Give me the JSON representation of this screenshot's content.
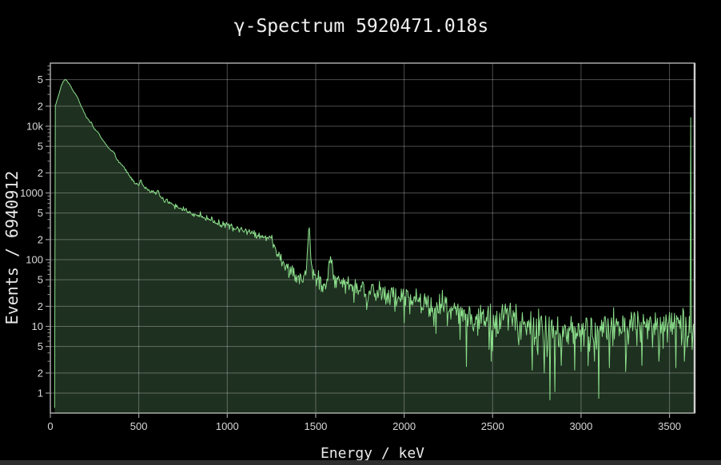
{
  "title": "γ-Spectrum 5920471.018s",
  "xlabel": "Energy / keV",
  "ylabel": "Events / 6940912",
  "colors": {
    "background": "#000000",
    "line": "#8cdf8c",
    "fill": "#1e301f",
    "grid": "rgba(255,255,255,0.30)",
    "tick_mark": "#9a9a9a",
    "border": "#c2c2c2",
    "border_right": "#cfcfcf",
    "title_text": "#f0f0f0",
    "tick_text": "#d9d9d9",
    "bottom_bar": "#2e2e2e"
  },
  "chart_data": {
    "type": "area",
    "title": "γ-Spectrum 5920471.018s",
    "xlabel": "Energy / keV",
    "ylabel": "Events / 6940912",
    "log_y": true,
    "grid": true,
    "legend": "none",
    "x_range_kev": [
      0,
      3642
    ],
    "y_range_counts": [
      0.55,
      88000
    ],
    "x_ticks": [
      0,
      500,
      1000,
      1500,
      2000,
      2500,
      3000,
      3500
    ],
    "y_ticks": [
      {
        "v": 1,
        "label": "1"
      },
      {
        "v": 2,
        "label": "2"
      },
      {
        "v": 5,
        "label": "5"
      },
      {
        "v": 10,
        "label": "10"
      },
      {
        "v": 20,
        "label": "2"
      },
      {
        "v": 50,
        "label": "5"
      },
      {
        "v": 100,
        "label": "100"
      },
      {
        "v": 200,
        "label": "2"
      },
      {
        "v": 500,
        "label": "5"
      },
      {
        "v": 1000,
        "label": "1000"
      },
      {
        "v": 2000,
        "label": "2"
      },
      {
        "v": 5000,
        "label": "5"
      },
      {
        "v": 10000,
        "label": "10k"
      },
      {
        "v": 20000,
        "label": "2"
      },
      {
        "v": 50000,
        "label": "5"
      }
    ],
    "y_minor_mults": [
      3,
      4,
      6,
      7,
      8,
      9
    ],
    "bin_width_kev": 4,
    "envelope_points_kev_counts": [
      [
        24,
        0.6
      ],
      [
        25,
        12000
      ],
      [
        27,
        20000
      ],
      [
        29,
        21800
      ],
      [
        33,
        22000
      ],
      [
        38,
        24500
      ],
      [
        48,
        30000
      ],
      [
        60,
        39000
      ],
      [
        72,
        46500
      ],
      [
        82,
        50200
      ],
      [
        90,
        49500
      ],
      [
        100,
        45500
      ],
      [
        113,
        41000
      ],
      [
        128,
        34000
      ],
      [
        142,
        30500
      ],
      [
        155,
        26500
      ],
      [
        172,
        20500
      ],
      [
        190,
        16300
      ],
      [
        205,
        13600
      ],
      [
        218,
        12200
      ],
      [
        228,
        11300
      ],
      [
        232,
        11600
      ],
      [
        240,
        9900
      ],
      [
        255,
        8800
      ],
      [
        270,
        8000
      ],
      [
        288,
        6700
      ],
      [
        305,
        5800
      ],
      [
        322,
        5000
      ],
      [
        340,
        4400
      ],
      [
        352,
        4150
      ],
      [
        360,
        4050
      ],
      [
        375,
        3250
      ],
      [
        390,
        2850
      ],
      [
        405,
        2580
      ],
      [
        420,
        2360
      ],
      [
        438,
        1960
      ],
      [
        455,
        1690
      ],
      [
        472,
        1490
      ],
      [
        488,
        1360
      ],
      [
        500,
        1300
      ],
      [
        507,
        1440
      ],
      [
        511,
        1560
      ],
      [
        516,
        1430
      ],
      [
        528,
        1240
      ],
      [
        545,
        1150
      ],
      [
        562,
        1060
      ],
      [
        578,
        1000
      ],
      [
        583,
        1090
      ],
      [
        590,
        985
      ],
      [
        600,
        955
      ],
      [
        609,
        1150
      ],
      [
        616,
        950
      ],
      [
        628,
        835
      ],
      [
        645,
        785
      ],
      [
        662,
        745
      ],
      [
        690,
        665
      ],
      [
        720,
        612
      ],
      [
        755,
        565
      ],
      [
        790,
        508
      ],
      [
        815,
        478
      ],
      [
        845,
        458
      ],
      [
        878,
        418
      ],
      [
        908,
        392
      ],
      [
        913,
        422
      ],
      [
        922,
        372
      ],
      [
        950,
        352
      ],
      [
        985,
        332
      ],
      [
        1015,
        316
      ],
      [
        1048,
        295
      ],
      [
        1080,
        274
      ],
      [
        1115,
        262
      ],
      [
        1122,
        268
      ],
      [
        1135,
        243
      ],
      [
        1165,
        235
      ],
      [
        1195,
        226
      ],
      [
        1225,
        217
      ],
      [
        1243,
        212
      ],
      [
        1258,
        196
      ],
      [
        1270,
        152
      ],
      [
        1283,
        122
      ],
      [
        1298,
        102
      ],
      [
        1315,
        86
      ],
      [
        1335,
        74
      ],
      [
        1358,
        65
      ],
      [
        1382,
        59
      ],
      [
        1405,
        56
      ],
      [
        1425,
        53
      ],
      [
        1438,
        56
      ],
      [
        1448,
        76
      ],
      [
        1455,
        160
      ],
      [
        1461,
        315
      ],
      [
        1467,
        205
      ],
      [
        1474,
        92
      ],
      [
        1483,
        64
      ],
      [
        1497,
        56
      ],
      [
        1512,
        49
      ],
      [
        1530,
        46
      ],
      [
        1548,
        45
      ],
      [
        1562,
        52
      ],
      [
        1574,
        78
      ],
      [
        1584,
        120
      ],
      [
        1591,
        86
      ],
      [
        1600,
        56
      ],
      [
        1612,
        47
      ],
      [
        1630,
        44
      ],
      [
        1655,
        42
      ],
      [
        1680,
        41
      ],
      [
        1710,
        40
      ],
      [
        1745,
        38
      ],
      [
        1780,
        36
      ],
      [
        1815,
        34
      ],
      [
        1850,
        32
      ],
      [
        1885,
        30
      ],
      [
        1920,
        29
      ],
      [
        1955,
        28
      ],
      [
        1985,
        27
      ],
      [
        2020,
        25
      ],
      [
        2055,
        24
      ],
      [
        2090,
        23
      ],
      [
        2125,
        22
      ],
      [
        2160,
        21
      ],
      [
        2195,
        20
      ],
      [
        2230,
        18.5
      ],
      [
        2262,
        17.5
      ],
      [
        2295,
        16.2
      ],
      [
        2330,
        15
      ],
      [
        2365,
        14
      ],
      [
        2400,
        13.2
      ],
      [
        2435,
        12.8
      ],
      [
        2470,
        12.2
      ],
      [
        2505,
        11.9
      ],
      [
        2540,
        12
      ],
      [
        2575,
        14.5
      ],
      [
        2598,
        18.5
      ],
      [
        2614,
        20
      ],
      [
        2628,
        14.5
      ],
      [
        2645,
        11
      ],
      [
        2680,
        10.3
      ],
      [
        2720,
        10
      ],
      [
        2760,
        9.8
      ],
      [
        2810,
        9.6
      ],
      [
        2860,
        9.5
      ],
      [
        2920,
        9.6
      ],
      [
        2980,
        9.7
      ],
      [
        3050,
        9.6
      ],
      [
        3120,
        9.7
      ],
      [
        3200,
        9.6
      ],
      [
        3280,
        9.8
      ],
      [
        3360,
        9.7
      ],
      [
        3440,
        9.8
      ],
      [
        3520,
        9.7
      ],
      [
        3590,
        9.9
      ],
      [
        3641,
        9.5
      ]
    ],
    "down_spikes_kev_counts": [
      [
        2352,
        2.5
      ],
      [
        2490,
        3
      ],
      [
        2722,
        2.2
      ],
      [
        2790,
        2
      ],
      [
        2852,
        1.05
      ],
      [
        2888,
        2.6
      ],
      [
        2964,
        2.2
      ],
      [
        3076,
        3
      ],
      [
        3160,
        2.4
      ],
      [
        3250,
        2.1
      ],
      [
        3344,
        2.6
      ],
      [
        3438,
        3
      ],
      [
        3534,
        2.4
      ],
      [
        3584,
        3
      ]
    ],
    "overflow_spike": {
      "start_kev": 3617,
      "end_kev": 3623,
      "counts": 13500
    },
    "noise": {
      "scale": 1.15,
      "seed": 42,
      "min_counts": 0.6,
      "max_counts": 82000
    }
  }
}
